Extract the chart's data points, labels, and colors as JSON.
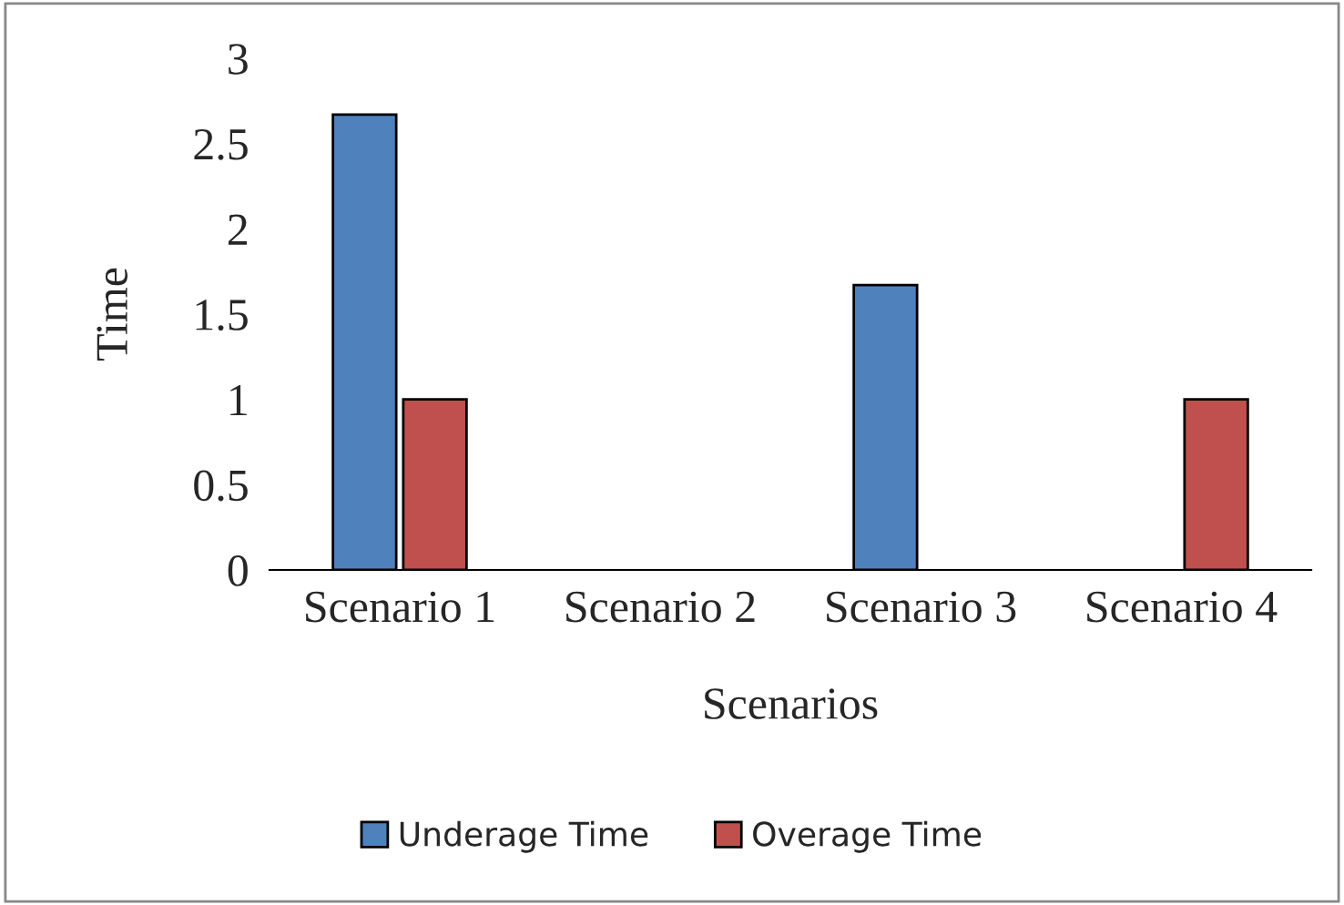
{
  "chart_data": {
    "type": "bar",
    "xlabel": "Scenarios",
    "ylabel": "Time",
    "categories": [
      "Scenario 1",
      "Scenario 2",
      "Scenario 3",
      "Scenario 4"
    ],
    "series": [
      {
        "name": "Underage Time",
        "color": "#4f81bd",
        "values": [
          2.67,
          0,
          1.67,
          0
        ]
      },
      {
        "name": "Overage Time",
        "color": "#c0504d",
        "values": [
          1,
          0,
          0,
          1
        ]
      }
    ],
    "ylim": [
      0,
      3
    ],
    "yticks": [
      0,
      0.5,
      1,
      1.5,
      2,
      2.5,
      3
    ],
    "grid": false,
    "legend": "bottom"
  }
}
